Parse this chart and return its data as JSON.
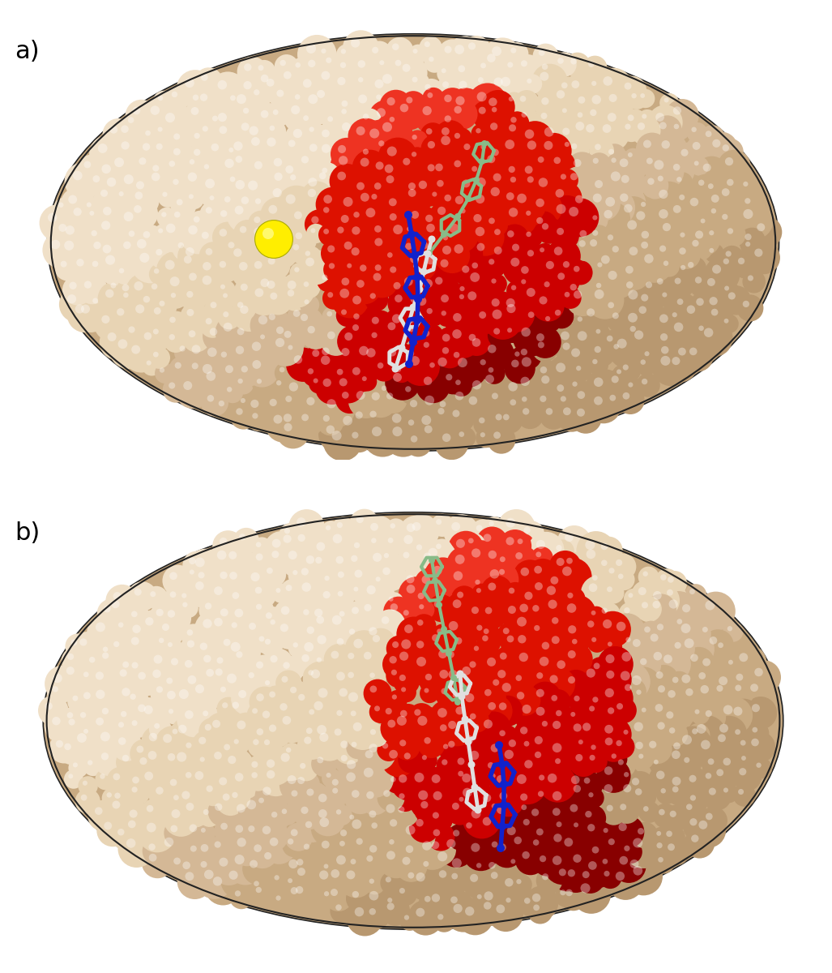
{
  "background_color": "#ffffff",
  "panel_a_label": "a)",
  "panel_b_label": "b)",
  "label_fontsize": 22,
  "label_color": "#000000",
  "tan_base": "#d4b896",
  "tan_dark": "#b89870",
  "tan_mid": "#c8aa82",
  "tan_light": "#e8d4b4",
  "tan_highlight": "#f0e0c8",
  "red_base": "#cc0000",
  "red_dark": "#880000",
  "red_mid": "#dd1100",
  "red_light": "#ee3322",
  "blue_color": "#1122cc",
  "white_color": "#e0e0e0",
  "green_color": "#88bb88",
  "yellow_color": "#ffee00",
  "outline_color": "#222222"
}
